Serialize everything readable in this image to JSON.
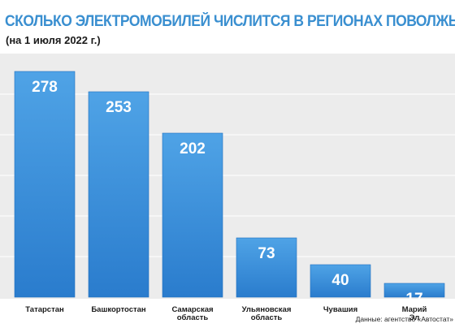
{
  "header": {
    "title": "СКОЛЬКО ЭЛЕКТРОМОБИЛЕЙ ЧИСЛИТСЯ В РЕГИОНАХ ПОВОЛЖЬЯ",
    "subtitle": "(на 1 июля 2022 г.)"
  },
  "source": "Данные: агентство «Автостат»",
  "colors": {
    "bar_top": "#4fa3e6",
    "bar_bottom": "#2a7ccd",
    "plot_bg": "#ececec",
    "grid": "#ffffff",
    "title": "#3a8fd0"
  },
  "chart_data": {
    "type": "bar",
    "categories": [
      "Татарстан",
      "Башкортостан",
      "Самарская область",
      "Ульяновская область",
      "Чувашия",
      "Марий Эл"
    ],
    "values": [
      278,
      253,
      202,
      73,
      40,
      17
    ],
    "ylim": [
      0,
      300
    ],
    "grid": true
  }
}
